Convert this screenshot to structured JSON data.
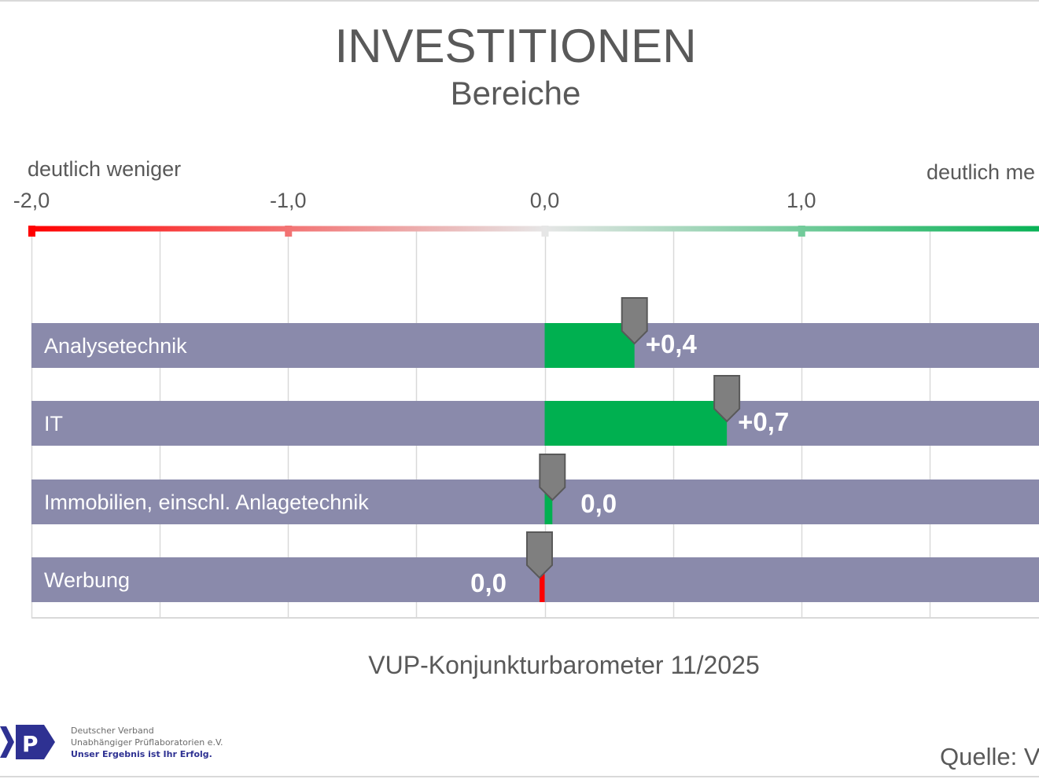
{
  "colors": {
    "negative": "#ff0000",
    "neutral": "#e6e6e6",
    "positive": "#00b050",
    "bar_bg": "#8a8aab",
    "marker": "#7f7f7f",
    "brand": "#2e3192"
  },
  "footer": {
    "source_line": "VUP-Konjunkturbarometer 11/2025",
    "quelle": "Quelle: V"
  },
  "logo": {
    "letter": "P",
    "line1": "Deutscher Verband",
    "line2": "Unabhängiger Prüflaboratorien e.V.",
    "tagline": "Unser Ergebnis ist Ihr Erfolg."
  },
  "chart_data": {
    "type": "bar",
    "title": "INVESTITIONEN",
    "subtitle": "Bereiche",
    "scale_left_label": "deutlich weniger",
    "scale_right_label": "deutlich me",
    "xlim": [
      -2.0,
      2.0
    ],
    "x_ticks": [
      -2.0,
      -1.0,
      0.0,
      1.0,
      2.0
    ],
    "x_tick_labels": [
      "-2,0",
      "-1,0",
      "0,0",
      "1,0",
      ""
    ],
    "grid": true,
    "categories": [
      "Analysetechnik",
      "IT",
      "Immobilien, einschl. Anlagetechnik",
      "Werbung"
    ],
    "values": [
      0.35,
      0.71,
      0.03,
      -0.02
    ],
    "value_labels": [
      "+0,4",
      "+0,7",
      "0,0",
      "0,0"
    ]
  }
}
